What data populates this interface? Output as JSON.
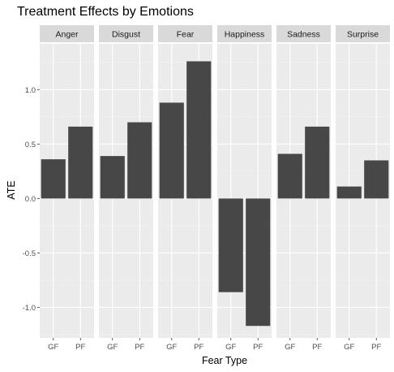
{
  "chart_data": {
    "type": "bar",
    "title": "Treatment Effects by Emotions",
    "xlabel": "Fear Type",
    "ylabel": "ATE",
    "ylim": [
      -1.28,
      1.42
    ],
    "yticks": [
      -1.0,
      -0.5,
      0.0,
      0.5,
      1.0
    ],
    "ytick_labels": [
      "-1.0",
      "-0.5",
      "0.0",
      "0.5",
      "1.0"
    ],
    "categories": [
      "GF",
      "PF"
    ],
    "facets": [
      {
        "name": "Anger",
        "values": [
          0.36,
          0.66
        ]
      },
      {
        "name": "Disgust",
        "values": [
          0.39,
          0.7
        ]
      },
      {
        "name": "Fear",
        "values": [
          0.88,
          1.26
        ]
      },
      {
        "name": "Happiness",
        "values": [
          -0.86,
          -1.17
        ]
      },
      {
        "name": "Sadness",
        "values": [
          0.41,
          0.66
        ]
      },
      {
        "name": "Surprise",
        "values": [
          0.11,
          0.35
        ]
      }
    ],
    "grid": true,
    "colors": {
      "bar": "#474747",
      "panel_bg": "#ebebeb",
      "strip_bg": "#d9d9d9",
      "grid_major": "#ffffff",
      "grid_minor": "#f5f5f5"
    }
  }
}
